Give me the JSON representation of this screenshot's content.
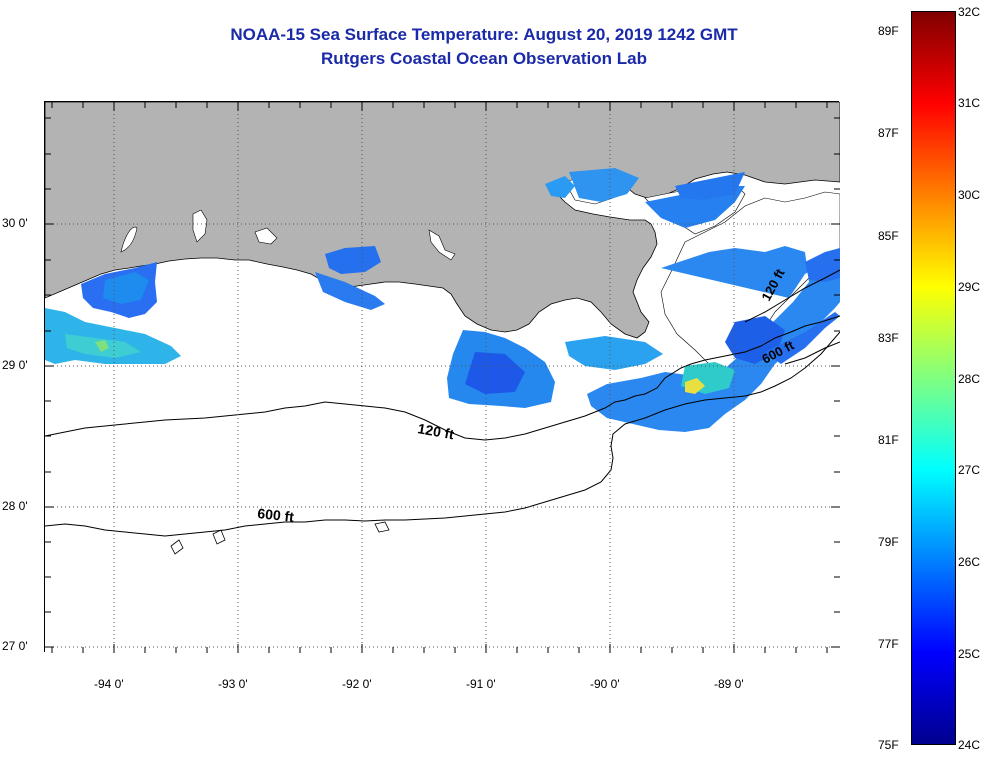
{
  "header": {
    "title_line1": "NOAA-15 Sea Surface Temperature:  August 20, 2019 1242 GMT",
    "title_line2": "Rutgers Coastal Ocean Observation Lab"
  },
  "map": {
    "lat_labels": [
      "30 0'",
      "29 0'",
      "28 0'",
      "27 0'"
    ],
    "lon_labels": [
      "-94 0'",
      "-93 0'",
      "-92 0'",
      "-91 0'",
      "-90 0'",
      "-89 0'"
    ],
    "contours": [
      {
        "label": "120 ft"
      },
      {
        "label": "600 ft"
      },
      {
        "label": "120 ft"
      },
      {
        "label": "600 ft"
      }
    ],
    "colors": {
      "land": "#b3b3b3",
      "ocean": "#ffffff",
      "gridline": "#555555"
    }
  },
  "colorbar": {
    "fahrenheit_labels": [
      "89F",
      "87F",
      "85F",
      "83F",
      "81F",
      "79F",
      "77F",
      "75F"
    ],
    "celsius_labels": [
      "32C",
      "31C",
      "30C",
      "29C",
      "28C",
      "27C",
      "26C",
      "25C",
      "24C"
    ],
    "range_c": [
      24,
      32
    ],
    "colormap": [
      "#00008f",
      "#0000ff",
      "#0080ff",
      "#00ffff",
      "#80ff80",
      "#ffff00",
      "#ff8000",
      "#ff0000",
      "#800000"
    ]
  }
}
